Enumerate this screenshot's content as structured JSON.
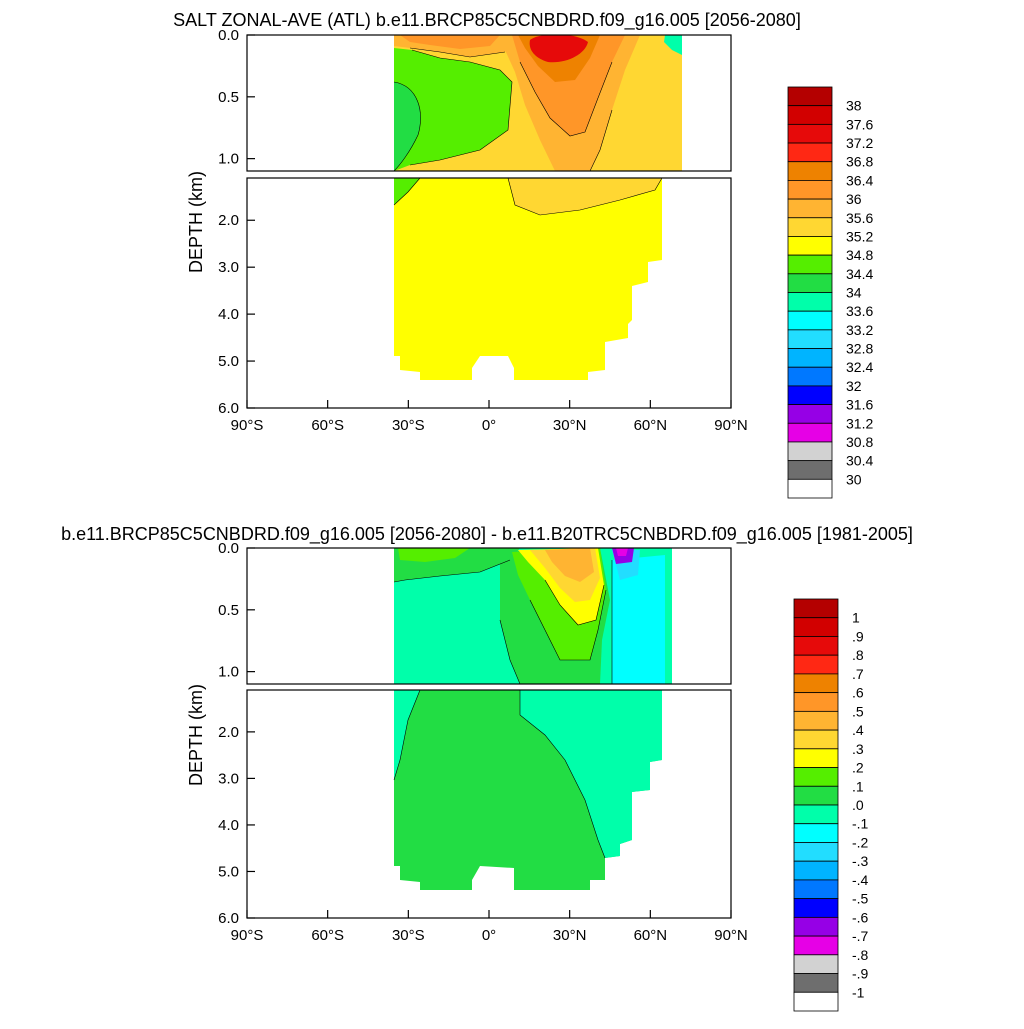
{
  "panels": [
    {
      "title": "SALT ZONAL-AVE (ATL) b.e11.BRCP85C5CNBDRD.f09_g16.005 [2056-2080]",
      "ylabel": "DEPTH (km)",
      "x_ticks": [
        "90°S",
        "60°S",
        "30°S",
        "0°",
        "30°N",
        "60°N",
        "90°N"
      ],
      "y_ticks_upper": [
        "0.0",
        "0.5",
        "1.0"
      ],
      "y_ticks_lower": [
        "2.0",
        "3.0",
        "4.0",
        "5.0",
        "6.0"
      ],
      "colorbar": {
        "labels": [
          "38",
          "37.6",
          "37.2",
          "36.8",
          "36.4",
          "36",
          "35.6",
          "35.2",
          "34.8",
          "34.4",
          "34",
          "33.6",
          "33.2",
          "32.8",
          "32.4",
          "32",
          "31.6",
          "31.2",
          "30.8",
          "30.4",
          "30"
        ]
      }
    },
    {
      "title": "b.e11.BRCP85C5CNBDRD.f09_g16.005 [2056-2080] - b.e11.B20TRC5CNBDRD.f09_g16.005 [1981-2005]",
      "ylabel": "DEPTH (km)",
      "x_ticks": [
        "90°S",
        "60°S",
        "30°S",
        "0°",
        "30°N",
        "60°N",
        "90°N"
      ],
      "y_ticks_upper": [
        "0.0",
        "0.5",
        "1.0"
      ],
      "y_ticks_lower": [
        "2.0",
        "3.0",
        "4.0",
        "5.0",
        "6.0"
      ],
      "colorbar": {
        "labels": [
          "1",
          ".9",
          ".8",
          ".7",
          ".6",
          ".5",
          ".4",
          ".3",
          ".2",
          ".1",
          ".0",
          "-.1",
          "-.2",
          "-.3",
          "-.4",
          "-.5",
          "-.6",
          "-.7",
          "-.8",
          "-.9",
          "-1"
        ]
      }
    }
  ],
  "colors": {
    "palette_top_to_bottom": [
      "#b40000",
      "#d20000",
      "#e60a0a",
      "#ff2814",
      "#ee8200",
      "#ff9628",
      "#ffb432",
      "#ffd732",
      "#ffff00",
      "#55ee00",
      "#22dd44",
      "#00ffaa",
      "#00ffff",
      "#22ddff",
      "#00b4ff",
      "#0078ff",
      "#0000ff",
      "#9600e6",
      "#e600e6",
      "#d2d2d2",
      "#6e6e6e",
      "#ffffff"
    ]
  },
  "chart_data": [
    {
      "type": "heatmap",
      "title": "SALT ZONAL-AVE (ATL) b.e11.BRCP85C5CNBDRD.f09_g16.005 [2056-2080]",
      "xlabel": "",
      "ylabel": "DEPTH (km)",
      "xlim": [
        -90,
        90
      ],
      "ylim_upper_km": [
        0,
        1.1
      ],
      "ylim_lower_km": [
        1.1,
        6.0
      ],
      "x_tick_values": [
        -90,
        -60,
        -30,
        0,
        30,
        60,
        90
      ],
      "data_extent_lat": [
        -34,
        67
      ],
      "levels": [
        30,
        30.4,
        30.8,
        31.2,
        31.6,
        32,
        32.4,
        32.8,
        33.2,
        33.6,
        34,
        34.4,
        34.8,
        35.2,
        35.6,
        36,
        36.4,
        36.8,
        37.2,
        37.6,
        38
      ],
      "approx_features": [
        {
          "region": "deep ocean below ~1.2 km",
          "lat_range": [
            -34,
            64
          ],
          "value_range": [
            34.8,
            35.2
          ]
        },
        {
          "region": "Antarctic Intermediate Water tongue",
          "lat_range": [
            -34,
            0
          ],
          "depth_km": [
            0.2,
            1.2
          ],
          "value_range": [
            34.4,
            34.8
          ]
        },
        {
          "region": "subtropical surface maximum N",
          "lat_range": [
            15,
            40
          ],
          "depth_km": [
            0,
            0.8
          ],
          "value_range": [
            36.4,
            37.6
          ]
        },
        {
          "region": "subtropical surface maximum S",
          "lat_range": [
            -30,
            -5
          ],
          "depth_km": [
            0,
            0.2
          ],
          "value_range": [
            35.6,
            36.8
          ]
        }
      ]
    },
    {
      "type": "heatmap",
      "title": "b.e11.BRCP85C5CNBDRD.f09_g16.005 [2056-2080] - b.e11.B20TRC5CNBDRD.f09_g16.005 [1981-2005]",
      "xlabel": "",
      "ylabel": "DEPTH (km)",
      "xlim": [
        -90,
        90
      ],
      "ylim_upper_km": [
        0,
        1.1
      ],
      "ylim_lower_km": [
        1.1,
        6.0
      ],
      "x_tick_values": [
        -90,
        -60,
        -30,
        0,
        30,
        60,
        90
      ],
      "data_extent_lat": [
        -34,
        67
      ],
      "levels": [
        -1,
        -0.9,
        -0.8,
        -0.7,
        -0.6,
        -0.5,
        -0.4,
        -0.3,
        -0.2,
        -0.1,
        0,
        0.1,
        0.2,
        0.3,
        0.4,
        0.5,
        0.6,
        0.7,
        0.8,
        0.9,
        1
      ],
      "approx_features": [
        {
          "region": "deep ocean south/central",
          "lat_range": [
            -34,
            30
          ],
          "depth_km": [
            1.2,
            5.5
          ],
          "value_range": [
            0.0,
            0.1
          ]
        },
        {
          "region": "deep ocean north",
          "lat_range": [
            30,
            64
          ],
          "depth_km": [
            1.2,
            5.0
          ],
          "value_range": [
            -0.1,
            0.0
          ]
        },
        {
          "region": "southern intermediate",
          "lat_range": [
            -34,
            0
          ],
          "depth_km": [
            0.2,
            1.1
          ],
          "value_range": [
            -0.1,
            0.0
          ]
        },
        {
          "region": "subtropical N surface increase",
          "lat_range": [
            15,
            45
          ],
          "depth_km": [
            0,
            0.9
          ],
          "value_range": [
            0.2,
            0.6
          ]
        },
        {
          "region": "high-latitude N surface freshening",
          "lat_range": [
            47,
            52
          ],
          "depth_km": [
            0,
            0.1
          ],
          "value_range": [
            -0.8,
            -0.4
          ]
        }
      ]
    }
  ]
}
